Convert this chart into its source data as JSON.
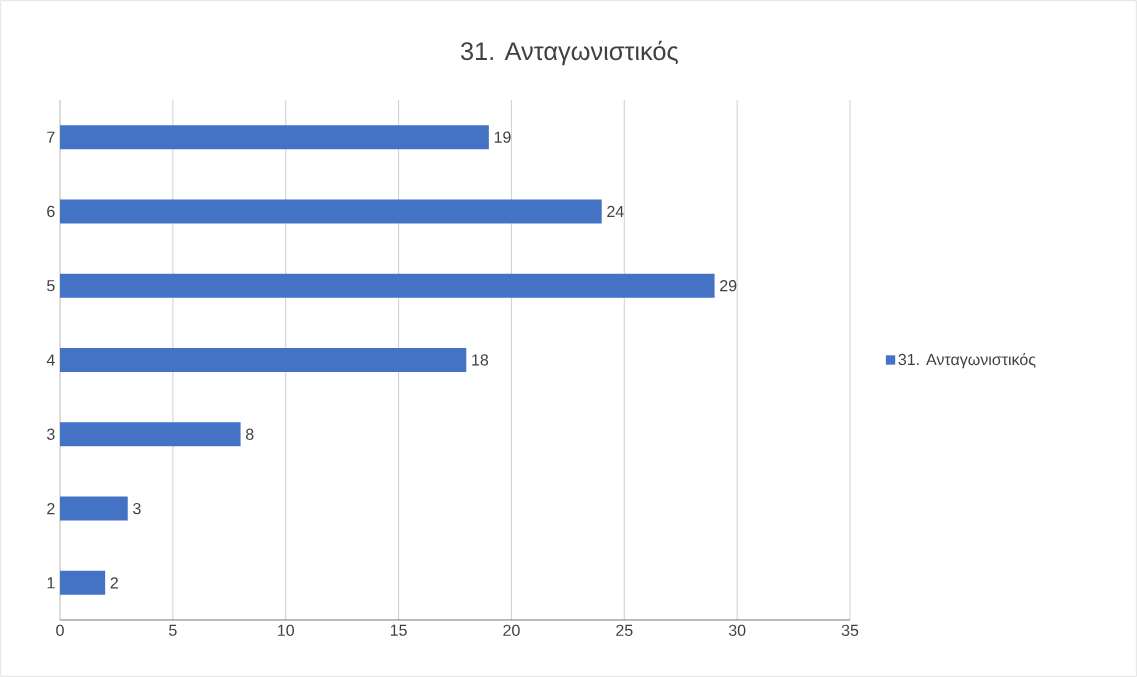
{
  "chart_data": {
    "type": "bar",
    "orientation": "horizontal",
    "title": "31. Ανταγωνιστικός",
    "categories": [
      "7",
      "6",
      "5",
      "4",
      "3",
      "2",
      "1"
    ],
    "series": [
      {
        "name": "31. Ανταγωνιστικός",
        "color": "#4472c4",
        "values": [
          19,
          24,
          29,
          18,
          8,
          3,
          2
        ]
      }
    ],
    "xlim": [
      0,
      35
    ],
    "xticks": [
      0,
      5,
      10,
      15,
      20,
      25,
      30,
      35
    ],
    "grid": "x",
    "legend": "right",
    "data_labels": true
  }
}
